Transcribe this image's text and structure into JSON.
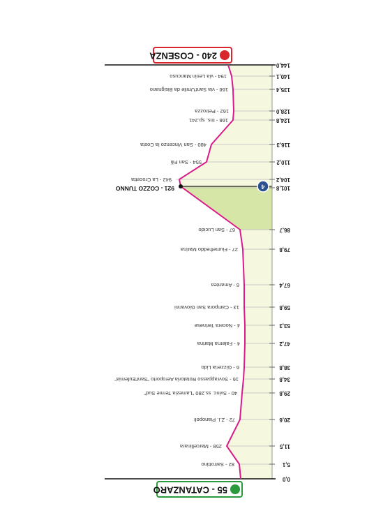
{
  "finish": {
    "km": "144,0",
    "label": "240 - COSENZA"
  },
  "start": {
    "km": "0,0",
    "label": "55 - CATANZARO"
  },
  "kom_badge": "4",
  "waypoints": [
    {
      "km": "140,1",
      "label": "194 - via Lenin Mancuso"
    },
    {
      "km": "135,4",
      "label": "166 - via Sant'Umile da Bisignano"
    },
    {
      "km": "128,0",
      "label": "162 - Petrozza"
    },
    {
      "km": "124,8",
      "label": "168 - Ins. sp.241"
    },
    {
      "km": "116,3",
      "label": "480 - San Vincenzo la Costa"
    },
    {
      "km": "110,2",
      "label": "554 - San Fili"
    },
    {
      "km": "104,2",
      "label": "942 - La Crocetta"
    },
    {
      "km": "101,8",
      "label": "921 - COZZO TUNNO"
    },
    {
      "km": "86,7",
      "label": "67 - San Lucido"
    },
    {
      "km": "79,8",
      "label": "27 - Fiumefreddo Marina"
    },
    {
      "km": "67,4",
      "label": "6 - Amantea"
    },
    {
      "km": "59,8",
      "label": "13 - Campora San Giovanni"
    },
    {
      "km": "53,3",
      "label": "4 - Nocera Terinese"
    },
    {
      "km": "47,2",
      "label": "4 - Falerna Marina"
    },
    {
      "km": "38,8",
      "label": "6 - Gizzeria Lido"
    },
    {
      "km": "34,8",
      "label": "16 - Sovrappasso Rotatoria Aeroporto \"Sant'Eufemia\""
    },
    {
      "km": "29,8",
      "label": "40 - Svinc. ss.280 \"Lamezia Terme Sud\""
    },
    {
      "km": "20,6",
      "label": "72 - Z.I. Pianopoli"
    },
    {
      "km": "11,5",
      "label": "258 - Marcellinara"
    },
    {
      "km": "5,1",
      "label": "82 - Sarrottino"
    }
  ]
}
